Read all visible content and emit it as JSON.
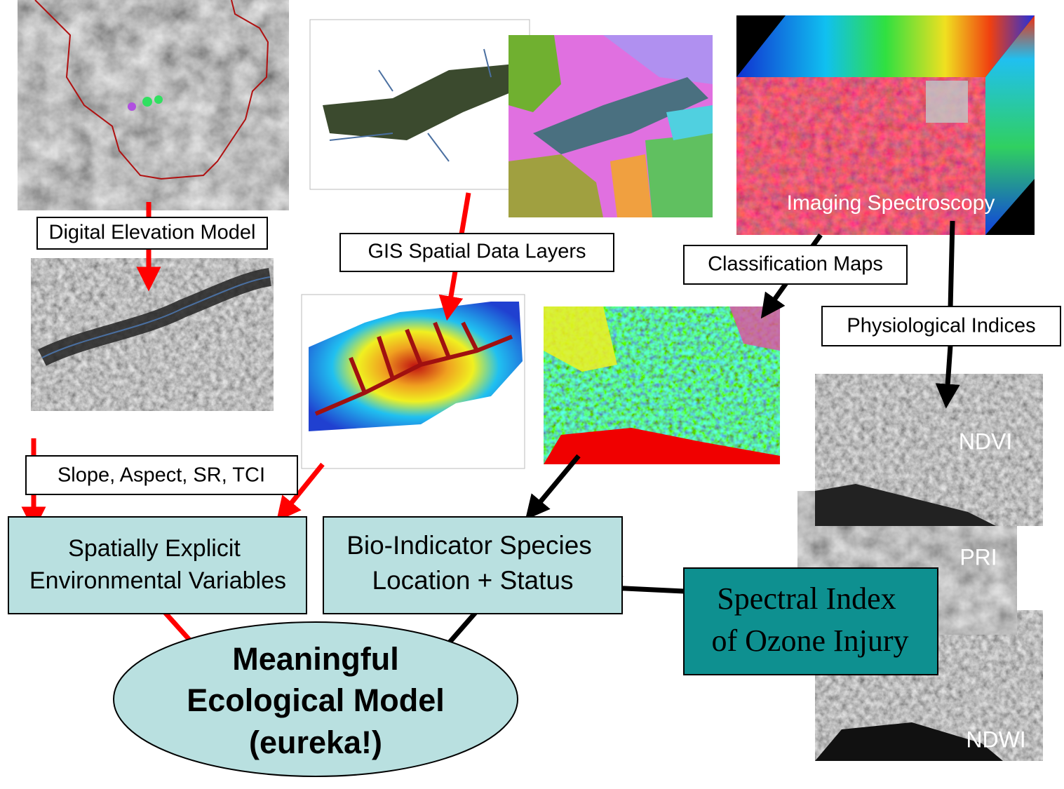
{
  "labels": {
    "dem": "Digital Elevation Model",
    "gis": "GIS Spatial Data Layers",
    "imaging": "Imaging Spectroscopy",
    "classification": "Classification Maps",
    "physiological": "Physiological Indices",
    "slope": "Slope, Aspect, SR, TCI",
    "ndvi": "NDVI",
    "pri": "PRI",
    "ndwi": "NDWI"
  },
  "boxes": {
    "environmental": {
      "lines": [
        "Spatially Explicit",
        "Environmental Variables"
      ]
    },
    "bioindicator": {
      "lines": [
        "Bio-Indicator Species",
        "Location + Status"
      ]
    },
    "spectral": {
      "lines": [
        "Spectral Index",
        "of Ozone Injury"
      ]
    },
    "model": {
      "lines": [
        "Meaningful",
        "Ecological Model",
        "(eureka!)"
      ]
    }
  }
}
